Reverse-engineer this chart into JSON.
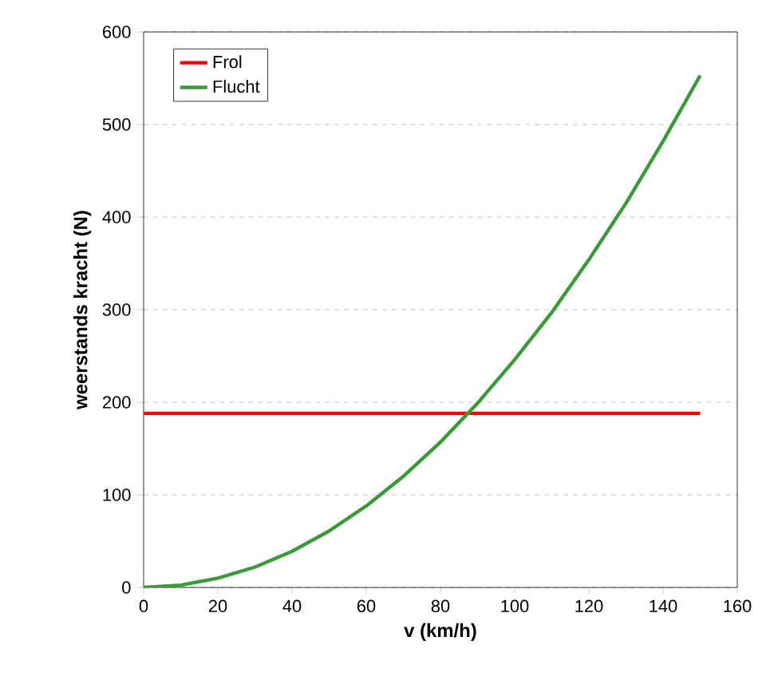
{
  "chart_data": {
    "type": "line",
    "xlabel": "v (km/h)",
    "ylabel": "weerstands kracht (N)",
    "xlim": [
      0,
      160
    ],
    "ylim": [
      0,
      600
    ],
    "xticks": [
      0,
      20,
      40,
      60,
      80,
      100,
      120,
      140,
      160
    ],
    "yticks": [
      0,
      100,
      200,
      300,
      400,
      500,
      600
    ],
    "grid": "y",
    "legend": "top left",
    "marker": "none",
    "line_style": "solid",
    "series": [
      {
        "name": "Frol",
        "color": "#ff0000",
        "x": [
          0,
          150
        ],
        "values": [
          188,
          188
        ]
      },
      {
        "name": "Flucht",
        "color": "#3a9a3a",
        "x": [
          0,
          10,
          20,
          30,
          40,
          50,
          60,
          70,
          80,
          90,
          100,
          110,
          120,
          130,
          140,
          150
        ],
        "values": [
          0,
          2.5,
          10,
          22,
          39,
          61,
          88,
          120,
          157,
          199,
          246,
          297,
          354,
          415,
          482,
          553
        ]
      }
    ]
  }
}
